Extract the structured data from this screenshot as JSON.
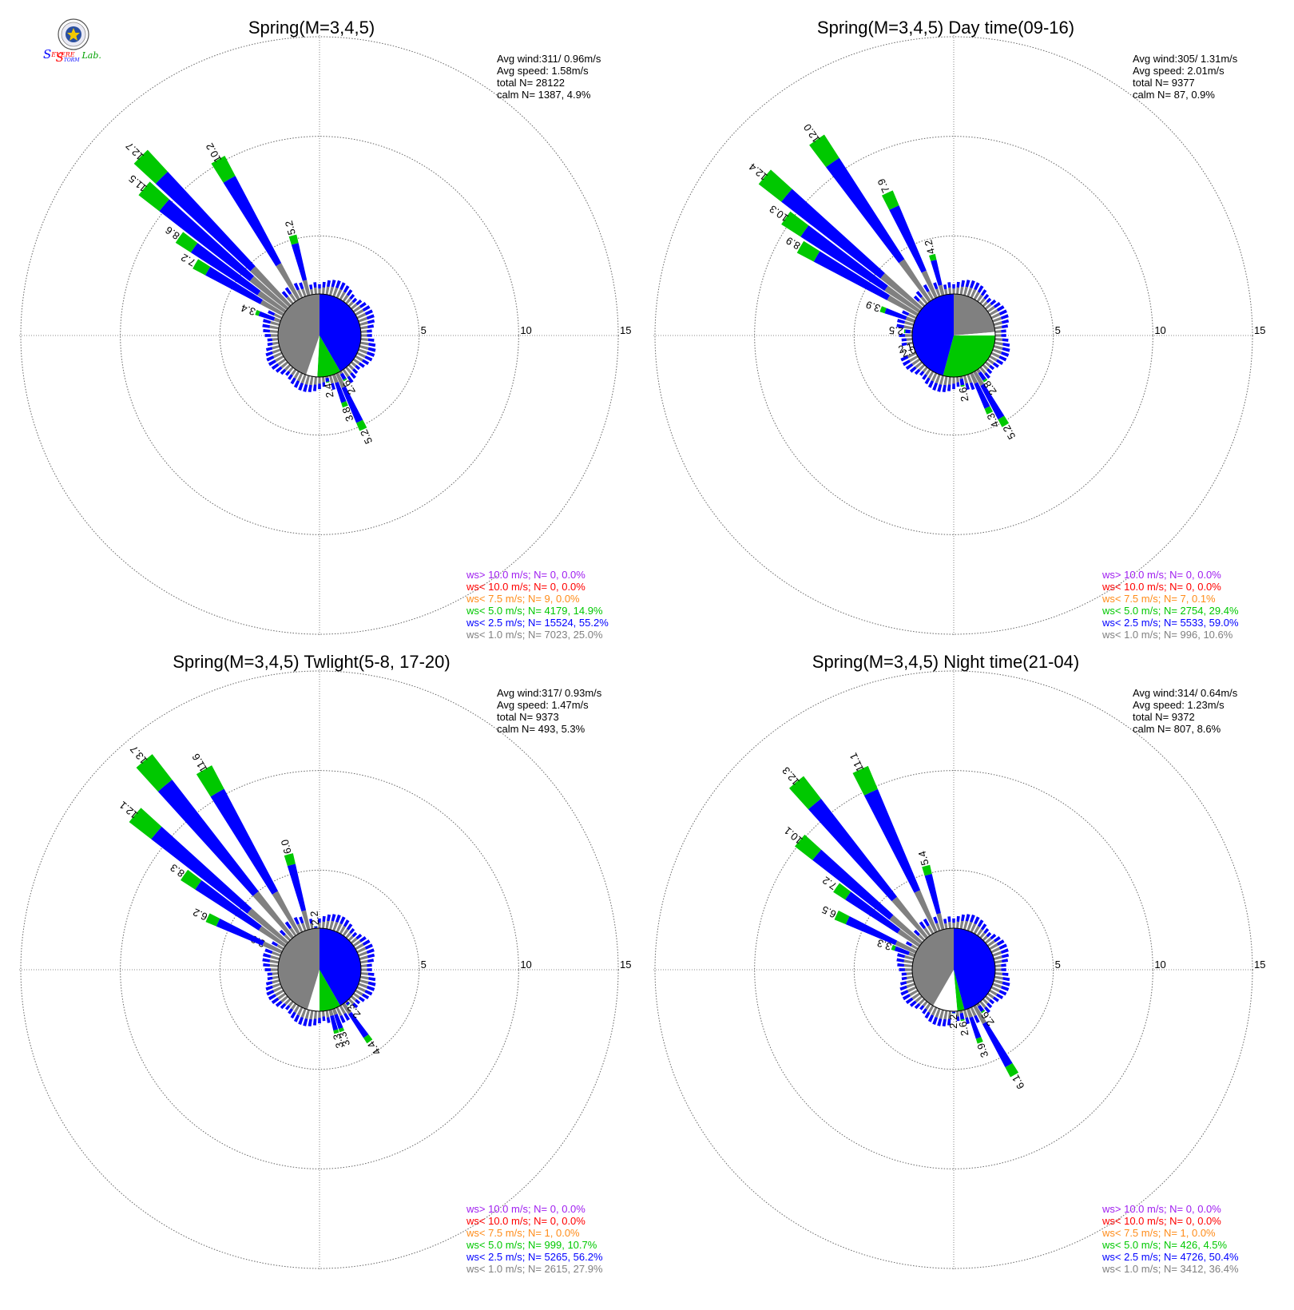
{
  "logo": {
    "text_s1": "S",
    "text_evere": "EVERE",
    "text_s2": "S",
    "text_torm": "TORM",
    "text_lab": "Lab."
  },
  "ring_labels": [
    "5",
    "10",
    "15"
  ],
  "colors": {
    "ws_gt_10": "#a020f0",
    "ws_lt_10": "#ff0000",
    "ws_lt_7_5": "#ff8c1a",
    "ws_lt_5": "#00c800",
    "ws_lt_2_5": "#0000ff",
    "ws_lt_1": "#808080",
    "grid": "#666666"
  },
  "chart_data": [
    {
      "type": "windrose",
      "title": "Spring(M=3,4,5)",
      "stats": [
        "Avg wind:311/ 0.96m/s",
        "Avg speed: 1.58m/s",
        "total N=      28122",
        "calm N=   1387,   4.9%"
      ],
      "legend": [
        {
          "text": "ws> 10.0 m/s; N=      0,  0.0%",
          "color": "#a020f0"
        },
        {
          "text": "ws< 10.0 m/s; N=      0,  0.0%",
          "color": "#ff0000"
        },
        {
          "text": "ws<  7.5 m/s; N=      9,  0.0%",
          "color": "#ff8c1a"
        },
        {
          "text": "ws<  5.0 m/s; N=  4179, 14.9%",
          "color": "#00c800"
        },
        {
          "text": "ws<  2.5 m/s; N= 15524, 55.2%",
          "color": "#0000ff"
        },
        {
          "text": "ws<  1.0 m/s; N=  7023, 25.0%",
          "color": "#808080"
        }
      ],
      "rmax": 15,
      "rings": [
        5,
        10,
        15
      ],
      "pie_deg": [
        [
          0,
          150,
          "blue"
        ],
        [
          150,
          183,
          "green"
        ],
        [
          183,
          199,
          "white"
        ],
        [
          199,
          360,
          "gray"
        ]
      ],
      "labeled_bars": [
        {
          "dir": 155,
          "total": 5.2,
          "label": "5.2"
        },
        {
          "dir": 160,
          "total": 3.8,
          "label": "3.8"
        },
        {
          "dir": 150,
          "total": 2.6,
          "label": "2.6"
        },
        {
          "dir": 170,
          "total": 2.4,
          "label": "2.4"
        },
        {
          "dir": 290,
          "total": 3.4,
          "label": "3.4"
        },
        {
          "dir": 300,
          "total": 7.2,
          "label": "7.2"
        },
        {
          "dir": 305,
          "total": 8.6,
          "label": "8.6"
        },
        {
          "dir": 310,
          "total": 11.5,
          "label": "11.5"
        },
        {
          "dir": 315,
          "total": 12.7,
          "label": "12.7"
        },
        {
          "dir": 330,
          "total": 10.2,
          "label": "10.2"
        },
        {
          "dir": 345,
          "total": 5.2,
          "label": "5.2"
        }
      ]
    },
    {
      "type": "windrose",
      "title": "Spring(M=3,4,5) Day time(09-16)",
      "stats": [
        "Avg wind:305/ 1.31m/s",
        "Avg speed: 2.01m/s",
        "total N=       9377",
        "calm N=     87,   0.9%"
      ],
      "legend": [
        {
          "text": "ws> 10.0 m/s; N=      0,  0.0%",
          "color": "#a020f0"
        },
        {
          "text": "ws< 10.0 m/s; N=      0,  0.0%",
          "color": "#ff0000"
        },
        {
          "text": "ws<  7.5 m/s; N=      7,  0.1%",
          "color": "#ff8c1a"
        },
        {
          "text": "ws<  5.0 m/s; N=  2754, 29.4%",
          "color": "#00c800"
        },
        {
          "text": "ws<  2.5 m/s; N=  5533, 59.0%",
          "color": "#0000ff"
        },
        {
          "text": "ws<  1.0 m/s; N=    996, 10.6%",
          "color": "#808080"
        }
      ],
      "rmax": 15,
      "rings": [
        5,
        10,
        15
      ],
      "pie_deg": [
        [
          0,
          85,
          "gray"
        ],
        [
          85,
          90,
          "white"
        ],
        [
          90,
          195,
          "green"
        ],
        [
          195,
          360,
          "blue"
        ]
      ],
      "labeled_bars": [
        {
          "dir": 150,
          "total": 5.2,
          "label": "5.2"
        },
        {
          "dir": 155,
          "total": 4.3,
          "label": "4.3"
        },
        {
          "dir": 145,
          "total": 2.8,
          "label": "2.8"
        },
        {
          "dir": 170,
          "total": 2.6,
          "label": "2.6"
        },
        {
          "dir": 250,
          "total": 2.0,
          "label": "2.0"
        },
        {
          "dir": 255,
          "total": 2.1,
          "label": "2.1"
        },
        {
          "dir": 275,
          "total": 2.5,
          "label": "2.5"
        },
        {
          "dir": 290,
          "total": 3.9,
          "label": "3.9"
        },
        {
          "dir": 300,
          "total": 8.9,
          "label": "8.9"
        },
        {
          "dir": 305,
          "total": 10.3,
          "label": "10.3"
        },
        {
          "dir": 310,
          "total": 12.4,
          "label": "12.4"
        },
        {
          "dir": 325,
          "total": 12.0,
          "label": "12.0"
        },
        {
          "dir": 335,
          "total": 7.9,
          "label": "7.9"
        },
        {
          "dir": 345,
          "total": 4.2,
          "label": "4.2"
        }
      ]
    },
    {
      "type": "windrose",
      "title": "Spring(M=3,4,5) Twlight(5-8, 17-20)",
      "stats": [
        "Avg wind:317/ 0.93m/s",
        "Avg speed: 1.47m/s",
        "total N=       9373",
        "calm N=    493,   5.3%"
      ],
      "legend": [
        {
          "text": "ws> 10.0 m/s; N=      0,  0.0%",
          "color": "#a020f0"
        },
        {
          "text": "ws< 10.0 m/s; N=      0,  0.0%",
          "color": "#ff0000"
        },
        {
          "text": "ws<  7.5 m/s; N=      1,  0.0%",
          "color": "#ff8c1a"
        },
        {
          "text": "ws<  5.0 m/s; N=    999, 10.7%",
          "color": "#00c800"
        },
        {
          "text": "ws<  2.5 m/s; N=  5265, 56.2%",
          "color": "#0000ff"
        },
        {
          "text": "ws<  1.0 m/s; N=  2615, 27.9%",
          "color": "#808080"
        }
      ],
      "rmax": 15,
      "rings": [
        5,
        10,
        15
      ],
      "pie_deg": [
        [
          0,
          150,
          "blue"
        ],
        [
          150,
          180,
          "green"
        ],
        [
          180,
          197,
          "white"
        ],
        [
          197,
          360,
          "gray"
        ]
      ],
      "labeled_bars": [
        {
          "dir": 145,
          "total": 4.4,
          "label": "4.4"
        },
        {
          "dir": 160,
          "total": 3.3,
          "label": "3.3"
        },
        {
          "dir": 140,
          "total": 2.3,
          "label": "2.3"
        },
        {
          "dir": 165,
          "total": 3.3,
          "label": "3.3"
        },
        {
          "dir": 295,
          "total": 3.0,
          "label": "3.0"
        },
        {
          "dir": 295,
          "total": 6.2,
          "label": "6.2"
        },
        {
          "dir": 305,
          "total": 8.3,
          "label": "8.3"
        },
        {
          "dir": 310,
          "total": 12.1,
          "label": "12.1"
        },
        {
          "dir": 320,
          "total": 13.7,
          "label": "13.7"
        },
        {
          "dir": 330,
          "total": 11.6,
          "label": "11.6"
        },
        {
          "dir": 345,
          "total": 6.0,
          "label": "6.0"
        },
        {
          "dir": 355,
          "total": 2.2,
          "label": "2.2"
        }
      ]
    },
    {
      "type": "windrose",
      "title": "Spring(M=3,4,5) Night time(21-04)",
      "stats": [
        "Avg wind:314/ 0.64m/s",
        "Avg speed: 1.23m/s",
        "total N=       9372",
        "calm N=    807,   8.6%"
      ],
      "legend": [
        {
          "text": "ws> 10.0 m/s; N=      0,  0.0%",
          "color": "#a020f0"
        },
        {
          "text": "ws< 10.0 m/s; N=      0,  0.0%",
          "color": "#ff0000"
        },
        {
          "text": "ws<  7.5 m/s; N=      1,  0.0%",
          "color": "#ff8c1a"
        },
        {
          "text": "ws<  5.0 m/s; N=    426,  4.5%",
          "color": "#00c800"
        },
        {
          "text": "ws<  2.5 m/s; N=  4726, 50.4%",
          "color": "#0000ff"
        },
        {
          "text": "ws<  1.0 m/s; N=  3412, 36.4%",
          "color": "#808080"
        }
      ],
      "rmax": 15,
      "rings": [
        5,
        10,
        15
      ],
      "pie_deg": [
        [
          0,
          165,
          "blue"
        ],
        [
          165,
          175,
          "green"
        ],
        [
          175,
          210,
          "white"
        ],
        [
          210,
          360,
          "gray"
        ]
      ],
      "labeled_bars": [
        {
          "dir": 150,
          "total": 6.1,
          "label": "6.1"
        },
        {
          "dir": 160,
          "total": 3.9,
          "label": "3.9"
        },
        {
          "dir": 145,
          "total": 2.6,
          "label": "2.6"
        },
        {
          "dir": 170,
          "total": 2.6,
          "label": "2.6"
        },
        {
          "dir": 180,
          "total": 2.2,
          "label": "2.2"
        },
        {
          "dir": 290,
          "total": 3.3,
          "label": "3.3"
        },
        {
          "dir": 295,
          "total": 6.5,
          "label": "6.5"
        },
        {
          "dir": 305,
          "total": 7.2,
          "label": "7.2"
        },
        {
          "dir": 310,
          "total": 10.1,
          "label": "10.1"
        },
        {
          "dir": 320,
          "total": 12.3,
          "label": "12.3"
        },
        {
          "dir": 335,
          "total": 11.1,
          "label": "11.1"
        },
        {
          "dir": 345,
          "total": 5.4,
          "label": "5.4"
        }
      ]
    }
  ]
}
